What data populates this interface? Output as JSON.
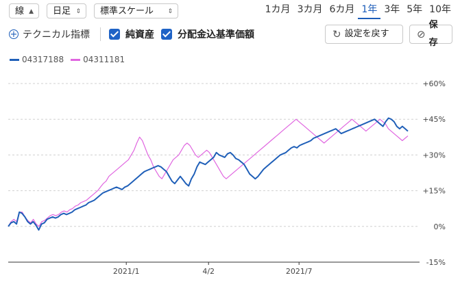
{
  "toolbar": {
    "line_select": "線",
    "candle_select": "日足",
    "scale_select": "標準スケール",
    "periods": [
      "1カ月",
      "3カ月",
      "6カ月",
      "1年",
      "3年",
      "5年",
      "10年"
    ],
    "active_period": "1年"
  },
  "toolbar2": {
    "technical_label": "テクニカル指標",
    "check1_label": "純資産",
    "check2_label": "分配金込基準価額",
    "reset_label": "設定を戻す",
    "save_label": "保存"
  },
  "colors": {
    "series1": "#1f5fb8",
    "series2": "#e066e0",
    "accent": "#1a5bb8"
  },
  "chart_data": {
    "type": "line",
    "x_ticks": [
      "2021/1",
      "4/2",
      "2021/7"
    ],
    "y_ticks": [
      "+60%",
      "+45%",
      "+30%",
      "+15%",
      "0%",
      "-15%"
    ],
    "ylim": [
      -15,
      60
    ],
    "y_tick_values": [
      60,
      45,
      30,
      15,
      0,
      -15
    ],
    "x_tick_positions": [
      0.287,
      0.487,
      0.707
    ],
    "series": [
      {
        "name": "04317188",
        "color": "#1f5fb8",
        "values": [
          0,
          1.5,
          2,
          1,
          6,
          5.5,
          4,
          2,
          1,
          2,
          0.5,
          -1.5,
          1,
          1.5,
          3,
          3.5,
          4,
          3.5,
          4,
          5,
          5.5,
          5,
          5.5,
          6,
          7,
          7.5,
          8,
          8.5,
          9,
          10,
          10.5,
          11,
          12,
          13,
          14,
          14.5,
          15,
          15.5,
          16,
          16.5,
          16,
          15.5,
          16.5,
          17,
          18,
          19,
          20,
          21,
          22,
          23,
          23.5,
          24,
          24.5,
          25,
          25.5,
          25,
          24,
          23,
          21,
          19,
          18,
          19.5,
          21,
          19.5,
          18,
          17,
          20,
          22,
          25,
          27,
          26.5,
          26,
          27,
          28,
          29,
          31,
          30,
          29.5,
          29,
          30.5,
          31,
          30,
          28.5,
          28,
          27,
          26,
          24,
          22,
          21,
          20,
          21,
          22.5,
          24,
          25,
          26,
          27,
          28,
          29,
          30,
          30.5,
          31,
          32,
          33,
          33.5,
          33,
          34,
          34.5,
          35,
          35.5,
          36,
          37,
          37.5,
          38,
          38.5,
          39,
          39.5,
          40,
          40.5,
          41,
          40,
          39,
          39.5,
          40,
          40.5,
          41,
          41.5,
          42,
          42.5,
          43,
          43.5,
          44,
          44.5,
          45,
          44,
          43,
          42,
          44,
          45.5,
          45,
          44,
          42,
          41,
          42,
          41,
          40
        ]
      },
      {
        "name": "04311181",
        "color": "#e066e0",
        "values": [
          0,
          2,
          3,
          2,
          6,
          6,
          4,
          2.5,
          1.5,
          3,
          1,
          0,
          2,
          2.5,
          3.5,
          4.5,
          5,
          4.5,
          5,
          6,
          6.5,
          6,
          7,
          7.5,
          8.5,
          9,
          10,
          10.5,
          11,
          12,
          13,
          14,
          15,
          16.5,
          18,
          19,
          21,
          22,
          23,
          24,
          25,
          26,
          27,
          28,
          30,
          32,
          35,
          37.5,
          36,
          33,
          30,
          28,
          25,
          23,
          21,
          20,
          22,
          24,
          26,
          28,
          29,
          30,
          32,
          34,
          35,
          34,
          32,
          30,
          29,
          30,
          31,
          32,
          31,
          29,
          27,
          25,
          23,
          21,
          20,
          21,
          22,
          23,
          24,
          25,
          26,
          27,
          28,
          29,
          30,
          31,
          32,
          33,
          34,
          35,
          36,
          37,
          38,
          39,
          40,
          41,
          42,
          43,
          44,
          45,
          44,
          43,
          42,
          41,
          40,
          39,
          38,
          37,
          36,
          35,
          36,
          37,
          38,
          39,
          40,
          41,
          42,
          43,
          44,
          45,
          44,
          43,
          42,
          41,
          40,
          41,
          42,
          43,
          44,
          45,
          44,
          43,
          41,
          40,
          39,
          38,
          37,
          36,
          37,
          38
        ]
      }
    ]
  }
}
